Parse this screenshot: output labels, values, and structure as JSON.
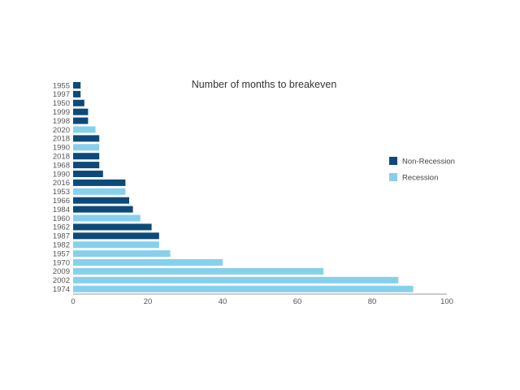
{
  "chart_data": {
    "type": "bar",
    "orientation": "horizontal",
    "title": "Number of months to breakeven",
    "xlabel": "",
    "ylabel": "",
    "xlim": [
      0,
      100
    ],
    "x_ticks": [
      0,
      20,
      40,
      60,
      80,
      100
    ],
    "grid": false,
    "legend_position": "right",
    "legend": [
      {
        "name": "Non-Recession",
        "color": "#0d4a7a"
      },
      {
        "name": "Recession",
        "color": "#87d0ec"
      }
    ],
    "bars": [
      {
        "category": "1955",
        "value": 2,
        "series": "Non-Recession"
      },
      {
        "category": "1997",
        "value": 2,
        "series": "Non-Recession"
      },
      {
        "category": "1950",
        "value": 3,
        "series": "Non-Recession"
      },
      {
        "category": "1999",
        "value": 4,
        "series": "Non-Recession"
      },
      {
        "category": "1998",
        "value": 4,
        "series": "Non-Recession"
      },
      {
        "category": "2020",
        "value": 6,
        "series": "Recession"
      },
      {
        "category": "2018",
        "value": 7,
        "series": "Non-Recession"
      },
      {
        "category": "1990",
        "value": 7,
        "series": "Recession"
      },
      {
        "category": "2018",
        "value": 7,
        "series": "Non-Recession"
      },
      {
        "category": "1968",
        "value": 7,
        "series": "Non-Recession"
      },
      {
        "category": "1990",
        "value": 8,
        "series": "Non-Recession"
      },
      {
        "category": "2016",
        "value": 14,
        "series": "Non-Recession"
      },
      {
        "category": "1953",
        "value": 14,
        "series": "Recession"
      },
      {
        "category": "1966",
        "value": 15,
        "series": "Non-Recession"
      },
      {
        "category": "1984",
        "value": 16,
        "series": "Non-Recession"
      },
      {
        "category": "1960",
        "value": 18,
        "series": "Recession"
      },
      {
        "category": "1962",
        "value": 21,
        "series": "Non-Recession"
      },
      {
        "category": "1987",
        "value": 23,
        "series": "Non-Recession"
      },
      {
        "category": "1982",
        "value": 23,
        "series": "Recession"
      },
      {
        "category": "1957",
        "value": 26,
        "series": "Recession"
      },
      {
        "category": "1970",
        "value": 40,
        "series": "Recession"
      },
      {
        "category": "2009",
        "value": 67,
        "series": "Recession"
      },
      {
        "category": "2002",
        "value": 87,
        "series": "Recession"
      },
      {
        "category": "1974",
        "value": 91,
        "series": "Recession"
      }
    ]
  }
}
